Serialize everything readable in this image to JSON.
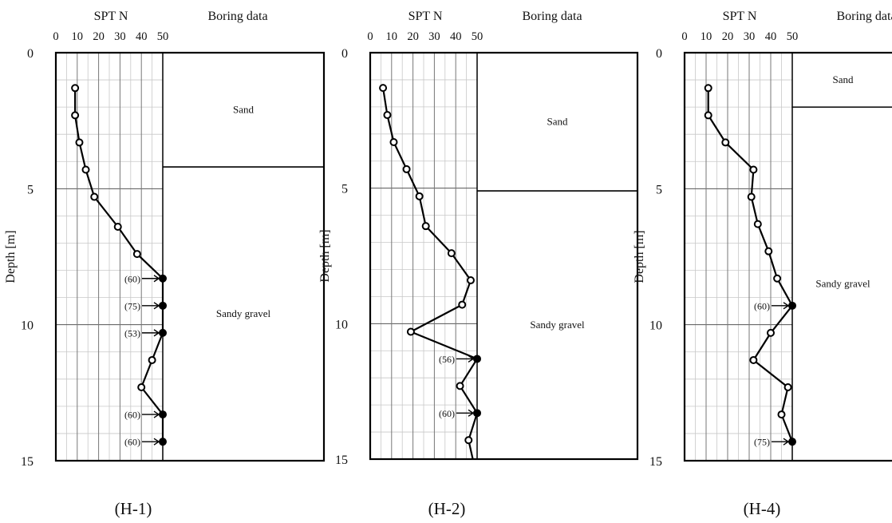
{
  "figure": {
    "background": "#ffffff",
    "line_color": "#000000",
    "grid_color": "#c8c8c8"
  },
  "chart_data": [
    {
      "type": "line",
      "title": "(H-1)",
      "header_left": "SPT N",
      "header_right": "Boring data",
      "ylabel": "Depth [m]",
      "xlim": [
        0,
        50
      ],
      "ylim": [
        0,
        15
      ],
      "x_ticks": [
        0,
        10,
        20,
        30,
        40,
        50
      ],
      "y_ticks": [
        0,
        5,
        10,
        15
      ],
      "grid": true,
      "series": [
        {
          "points": [
            {
              "x": 9,
              "y": 1.3,
              "filled": false
            },
            {
              "x": 9,
              "y": 2.3,
              "filled": false
            },
            {
              "x": 11,
              "y": 3.3,
              "filled": false
            },
            {
              "x": 14,
              "y": 4.3,
              "filled": false
            },
            {
              "x": 18,
              "y": 5.3,
              "filled": false
            },
            {
              "x": 29,
              "y": 6.4,
              "filled": false
            },
            {
              "x": 38,
              "y": 7.4,
              "filled": false
            },
            {
              "x": 50,
              "y": 8.3,
              "filled": true,
              "label": "(60)"
            },
            {
              "x": 50,
              "y": 9.3,
              "filled": true,
              "label": "(75)"
            },
            {
              "x": 50,
              "y": 10.3,
              "filled": true,
              "label": "(53)"
            },
            {
              "x": 45,
              "y": 11.3,
              "filled": false
            },
            {
              "x": 40,
              "y": 12.3,
              "filled": false
            },
            {
              "x": 50,
              "y": 13.3,
              "filled": true,
              "label": "(60)"
            },
            {
              "x": 50,
              "y": 14.3,
              "filled": true,
              "label": "(60)"
            }
          ]
        }
      ],
      "layers": [
        {
          "name": "Sand",
          "top": 0,
          "bottom": 4.2
        },
        {
          "name": "Sandy gravel",
          "top": 4.2,
          "bottom": 15
        }
      ]
    },
    {
      "type": "line",
      "title": "(H-2)",
      "header_left": "SPT N",
      "header_right": "Boring data",
      "ylabel": "Depth [m]",
      "xlim": [
        0,
        50
      ],
      "ylim": [
        0,
        15
      ],
      "x_ticks": [
        0,
        10,
        20,
        30,
        40,
        50
      ],
      "y_ticks": [
        0,
        5,
        10,
        15
      ],
      "grid": true,
      "series": [
        {
          "points": [
            {
              "x": 6,
              "y": 1.3,
              "filled": false
            },
            {
              "x": 8,
              "y": 2.3,
              "filled": false
            },
            {
              "x": 11,
              "y": 3.3,
              "filled": false
            },
            {
              "x": 17,
              "y": 4.3,
              "filled": false
            },
            {
              "x": 23,
              "y": 5.3,
              "filled": false
            },
            {
              "x": 26,
              "y": 6.4,
              "filled": false
            },
            {
              "x": 38,
              "y": 7.4,
              "filled": false
            },
            {
              "x": 47,
              "y": 8.4,
              "filled": false
            },
            {
              "x": 43,
              "y": 9.3,
              "filled": false
            },
            {
              "x": 19,
              "y": 10.3,
              "filled": false
            },
            {
              "x": 50,
              "y": 11.3,
              "filled": true,
              "label": "(56)"
            },
            {
              "x": 42,
              "y": 12.3,
              "filled": false
            },
            {
              "x": 50,
              "y": 13.3,
              "filled": true,
              "label": "(60)"
            },
            {
              "x": 46,
              "y": 14.3,
              "filled": false
            },
            {
              "x": 48,
              "y": 15,
              "filled": null
            }
          ]
        }
      ],
      "layers": [
        {
          "name": "Sand",
          "top": 0,
          "bottom": 5.1
        },
        {
          "name": "Sandy gravel",
          "top": 5.1,
          "bottom": 15
        }
      ]
    },
    {
      "type": "line",
      "title": "(H-4)",
      "header_left": "SPT N",
      "header_right": "Boring data",
      "ylabel": "Depth [m]",
      "xlim": [
        0,
        50
      ],
      "ylim": [
        0,
        15
      ],
      "x_ticks": [
        0,
        10,
        20,
        30,
        40,
        50
      ],
      "y_ticks": [
        0,
        5,
        10,
        15
      ],
      "grid": true,
      "series": [
        {
          "points": [
            {
              "x": 11,
              "y": 1.3,
              "filled": false
            },
            {
              "x": 11,
              "y": 2.3,
              "filled": false
            },
            {
              "x": 19,
              "y": 3.3,
              "filled": false
            },
            {
              "x": 32,
              "y": 4.3,
              "filled": false
            },
            {
              "x": 31,
              "y": 5.3,
              "filled": false
            },
            {
              "x": 34,
              "y": 6.3,
              "filled": false
            },
            {
              "x": 39,
              "y": 7.3,
              "filled": false
            },
            {
              "x": 43,
              "y": 8.3,
              "filled": false
            },
            {
              "x": 50,
              "y": 9.3,
              "filled": true,
              "label": "(60)"
            },
            {
              "x": 40,
              "y": 10.3,
              "filled": false
            },
            {
              "x": 32,
              "y": 11.3,
              "filled": false
            },
            {
              "x": 48,
              "y": 12.3,
              "filled": false
            },
            {
              "x": 45,
              "y": 13.3,
              "filled": false
            },
            {
              "x": 50,
              "y": 14.3,
              "filled": true,
              "label": "(75)"
            }
          ]
        }
      ],
      "layers": [
        {
          "name": "Sand",
          "top": 0,
          "bottom": 2.0
        },
        {
          "name": "Sandy gravel",
          "top": 2.0,
          "bottom": 15
        }
      ]
    }
  ]
}
